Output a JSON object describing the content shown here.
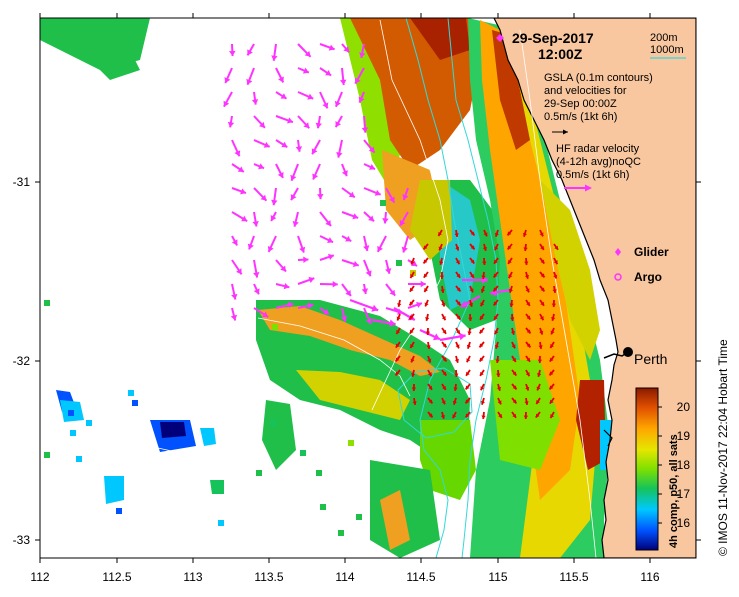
{
  "map": {
    "title_date": "29-Sep-2017",
    "title_time": "12:00Z",
    "x_ticks": [
      "112",
      "112.5",
      "113",
      "113.5",
      "114",
      "114.5",
      "115",
      "115.5",
      "116"
    ],
    "y_ticks": [
      "-31",
      "-32",
      "-33"
    ],
    "depth_legend": [
      "200m",
      "1000m"
    ],
    "gsla_note": [
      "GSLA (0.1m contours)",
      "and velocities for",
      "29-Sep 00:00Z",
      "0.5m/s (1kt 6h)"
    ],
    "hf_note": [
      "HF radar velocity",
      "(4-12h avg)noQC",
      "0.5m/s (1kt 6h)"
    ],
    "glider_label": "Glider",
    "argo_label": "Argo",
    "city_label": "Perth",
    "colorbar_title": "4h comp, p50, all sats",
    "colorbar_ticks": [
      "20",
      "19",
      "18",
      "17",
      "16"
    ],
    "credit": "© IMOS 11-Nov-2017 22:04 Hobart Time",
    "colors": {
      "land": "#f9c79f",
      "coast": "#000000",
      "isobath": "#33d9d9",
      "contour": "#ffffff",
      "gsla_arrow": "#ff33ff",
      "hf_arrow": "#e60000",
      "glider": "#ff33ff",
      "argo": "#ff33ff"
    }
  }
}
